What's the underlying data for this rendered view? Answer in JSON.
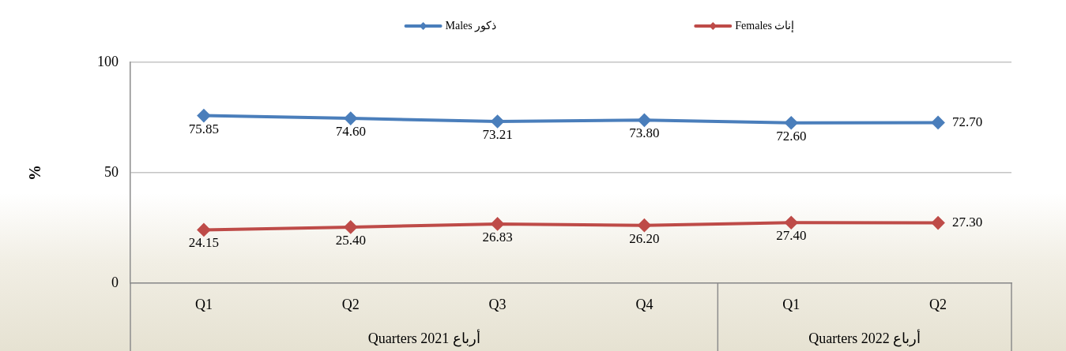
{
  "chart_data": {
    "type": "line",
    "categories": [
      "Q1",
      "Q2",
      "Q3",
      "Q4",
      "Q1",
      "Q2"
    ],
    "series": [
      {
        "name": "Males ذكور",
        "color": "#4a7ebb",
        "values": [
          75.85,
          74.6,
          73.21,
          73.8,
          72.6,
          72.7
        ],
        "value_labels": [
          "75.85",
          "74.60",
          "73.21",
          "73.80",
          "72.60",
          "72.70"
        ]
      },
      {
        "name": "Females إناث",
        "color": "#be4b48",
        "values": [
          24.15,
          25.4,
          26.83,
          26.2,
          27.4,
          27.3
        ],
        "value_labels": [
          "24.15",
          "25.40",
          "26.83",
          "26.20",
          "27.40",
          "27.30"
        ]
      }
    ],
    "ylabel": "%",
    "ylim": [
      0,
      100
    ],
    "yticks": [
      0,
      50,
      100
    ],
    "grid": "y",
    "legend": "top",
    "marker": "diamond",
    "annotations": [
      "Quarters 2021 أرباع",
      "Quarters 2022 أرباع"
    ]
  }
}
